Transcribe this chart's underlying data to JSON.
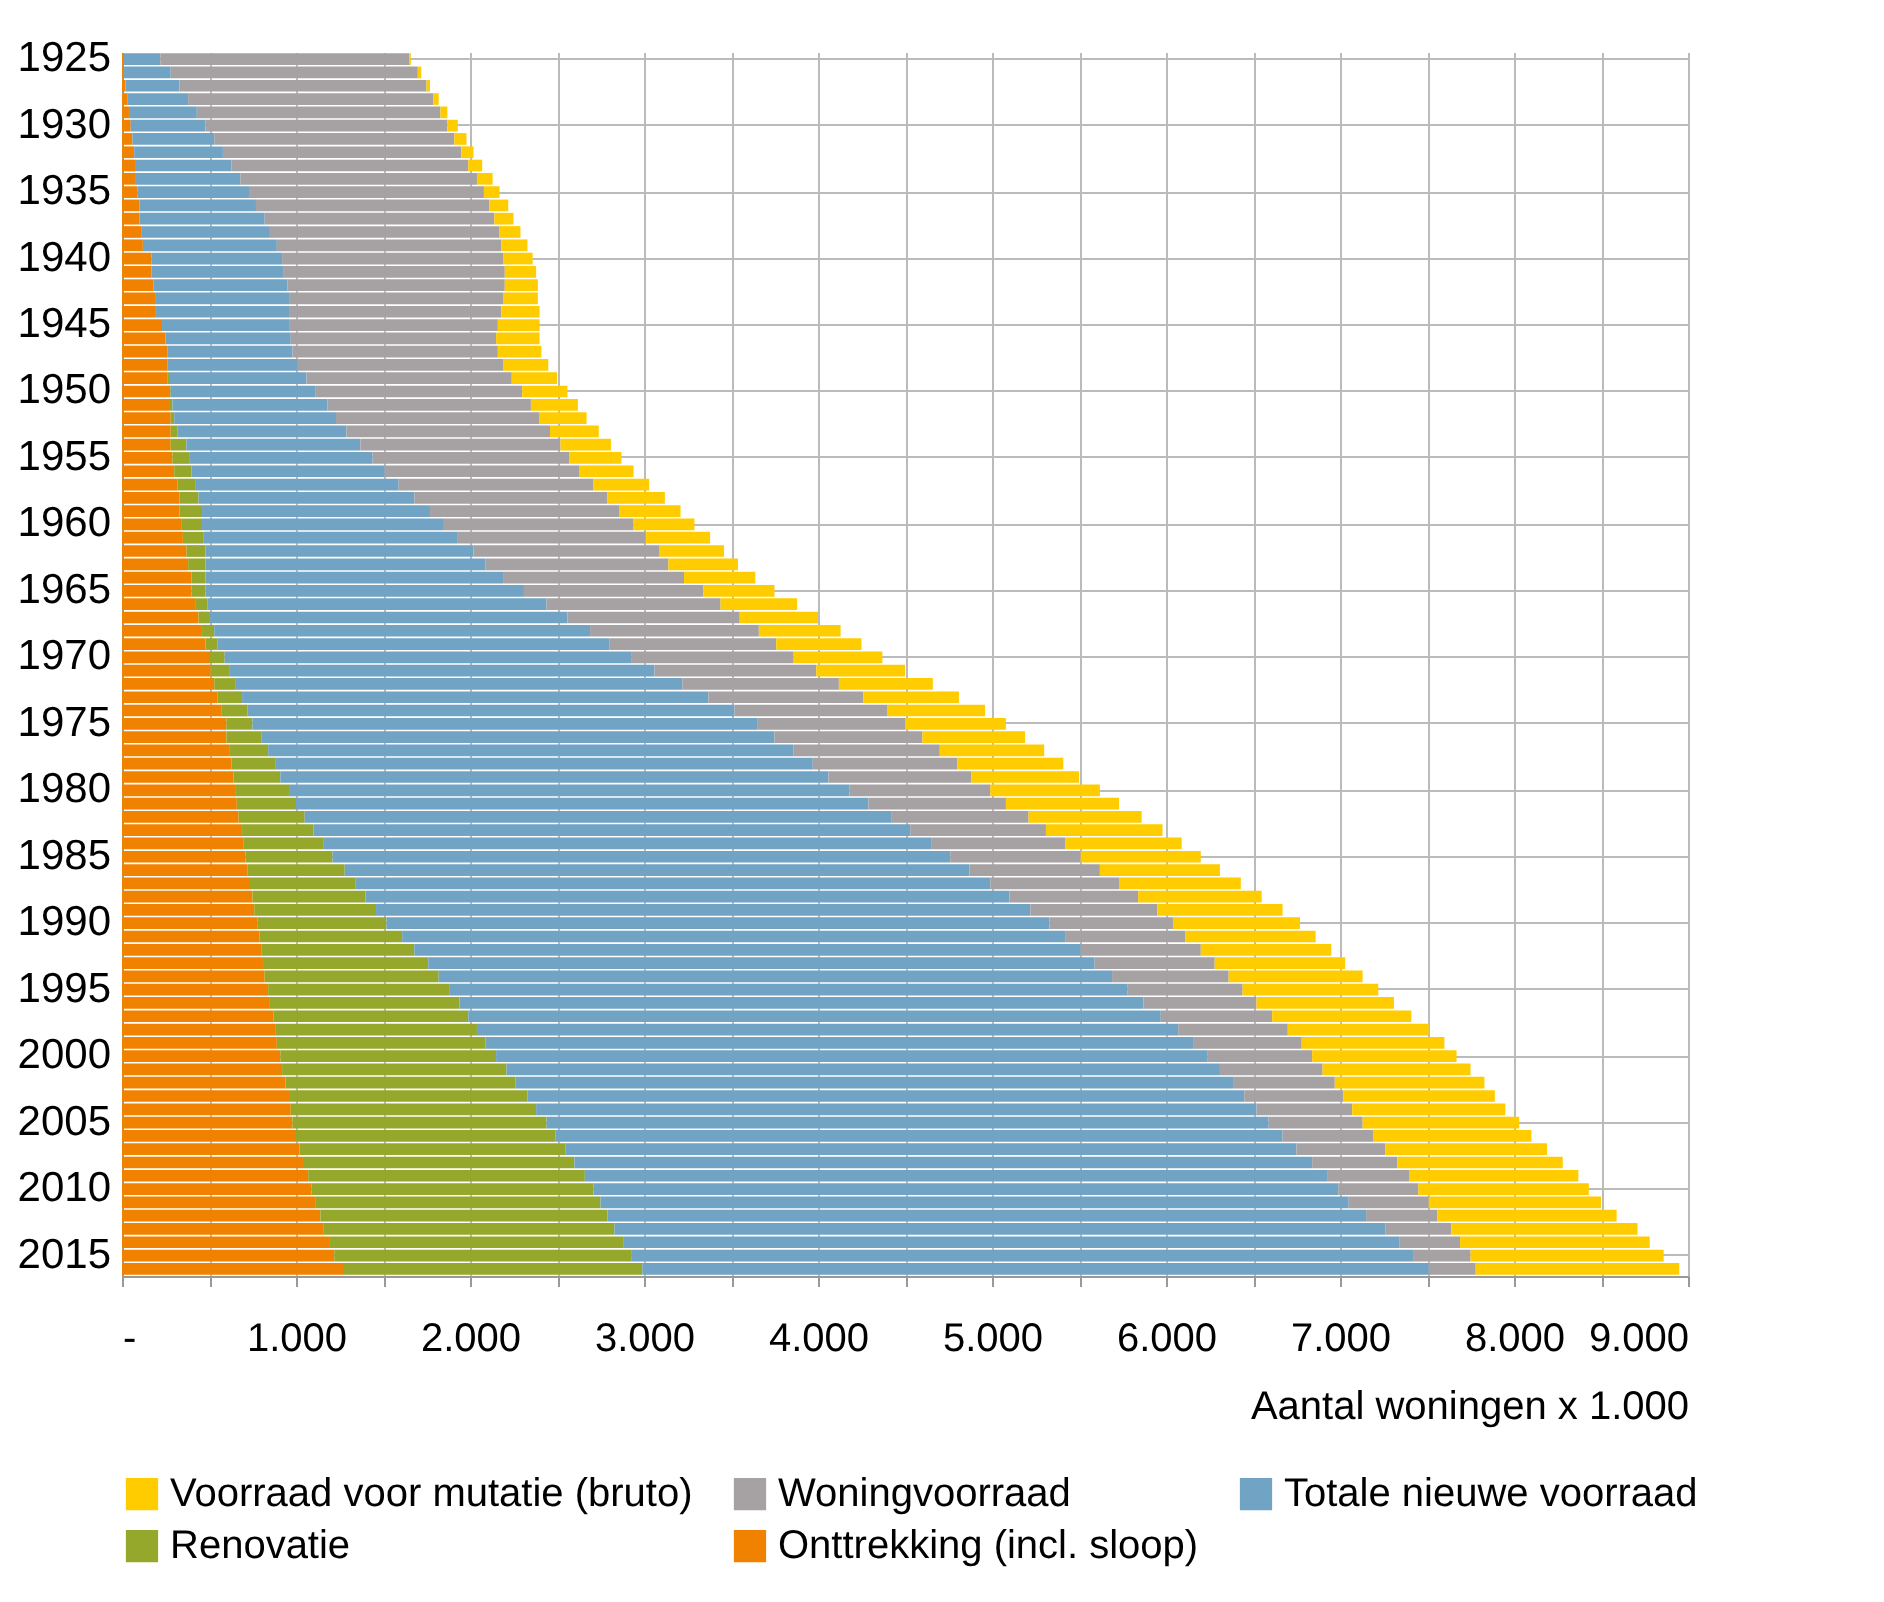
{
  "chart_data": {
    "type": "bar",
    "orientation": "horizontal",
    "stacked": true,
    "xlabel": "Aantal woningen x 1.000",
    "categories": [
      "1925",
      null,
      null,
      null,
      null,
      "1930",
      null,
      null,
      null,
      null,
      "1935",
      null,
      null,
      null,
      null,
      "1940",
      null,
      null,
      null,
      null,
      "1945",
      null,
      null,
      null,
      null,
      "1950",
      null,
      null,
      null,
      null,
      "1955",
      null,
      null,
      null,
      null,
      "1960",
      null,
      null,
      null,
      null,
      "1965",
      null,
      null,
      null,
      null,
      "1970",
      null,
      null,
      null,
      null,
      "1975",
      null,
      null,
      null,
      null,
      "1980",
      null,
      null,
      null,
      null,
      "1985",
      null,
      null,
      null,
      null,
      "1990",
      null,
      null,
      null,
      null,
      "1995",
      null,
      null,
      null,
      null,
      "2000",
      null,
      null,
      null,
      null,
      "2005",
      null,
      null,
      null,
      null,
      "2010",
      null,
      null,
      null,
      null,
      "2015",
      null
    ],
    "xlim": [
      0,
      9000
    ],
    "xticks": [
      {
        "value": 0,
        "label": "-"
      },
      {
        "value": 500,
        "label": null
      },
      {
        "value": 1000,
        "label": "1.000"
      },
      {
        "value": 1500,
        "label": null
      },
      {
        "value": 2000,
        "label": "2.000"
      },
      {
        "value": 2500,
        "label": null
      },
      {
        "value": 3000,
        "label": "3.000"
      },
      {
        "value": 3500,
        "label": null
      },
      {
        "value": 4000,
        "label": "4.000"
      },
      {
        "value": 4500,
        "label": null
      },
      {
        "value": 5000,
        "label": "5.000"
      },
      {
        "value": 5500,
        "label": null
      },
      {
        "value": 6000,
        "label": "6.000"
      },
      {
        "value": 6500,
        "label": null
      },
      {
        "value": 7000,
        "label": "7.000"
      },
      {
        "value": 7500,
        "label": null
      },
      {
        "value": 8000,
        "label": "8.000"
      },
      {
        "value": 8500,
        "label": null
      },
      {
        "value": 9000,
        "label": "9.000"
      }
    ],
    "grid": true,
    "legend": "bottom",
    "series": [
      {
        "name": "Onttrekking (incl. sloop)",
        "color": "#f08200",
        "values": [
          10,
          10,
          20,
          30,
          40,
          50,
          60,
          70,
          80,
          80,
          90,
          100,
          100,
          110,
          120,
          170,
          170,
          180,
          190,
          190,
          230,
          250,
          260,
          260,
          260,
          270,
          270,
          280,
          280,
          280,
          290,
          300,
          320,
          330,
          330,
          340,
          350,
          370,
          380,
          400,
          400,
          420,
          440,
          460,
          480,
          500,
          510,
          530,
          550,
          570,
          600,
          600,
          620,
          630,
          640,
          650,
          660,
          670,
          690,
          700,
          710,
          720,
          730,
          750,
          760,
          780,
          790,
          800,
          810,
          820,
          840,
          850,
          870,
          880,
          890,
          910,
          920,
          940,
          960,
          970,
          980,
          1000,
          1020,
          1040,
          1070,
          1090,
          1110,
          1140,
          1160,
          1190,
          1220,
          1270
        ]
      },
      {
        "name": "Renovatie",
        "color": "#95a82c",
        "values": [
          null,
          null,
          null,
          null,
          null,
          null,
          null,
          null,
          null,
          null,
          null,
          null,
          null,
          null,
          null,
          null,
          null,
          null,
          null,
          null,
          null,
          null,
          null,
          null,
          10,
          10,
          20,
          20,
          40,
          90,
          100,
          100,
          100,
          110,
          130,
          120,
          120,
          110,
          100,
          80,
          80,
          70,
          60,
          70,
          70,
          90,
          110,
          120,
          140,
          150,
          150,
          200,
          220,
          250,
          270,
          310,
          340,
          380,
          410,
          460,
          500,
          560,
          610,
          650,
          700,
          740,
          820,
          880,
          950,
          1000,
          1040,
          1090,
          1120,
          1160,
          1200,
          1240,
          1290,
          1320,
          1370,
          1410,
          1460,
          1490,
          1530,
          1560,
          1590,
          1620,
          1640,
          1650,
          1670,
          1690,
          1710,
          1720
        ]
      },
      {
        "name": "Totale nieuwe voorraad",
        "color": "#71a3c5",
        "values": [
          210,
          270,
          310,
          350,
          390,
          430,
          470,
          510,
          550,
          600,
          640,
          670,
          720,
          740,
          770,
          750,
          760,
          770,
          770,
          770,
          730,
          720,
          720,
          750,
          790,
          830,
          890,
          930,
          970,
          1000,
          1050,
          1110,
          1170,
          1240,
          1310,
          1390,
          1460,
          1540,
          1610,
          1710,
          1830,
          1950,
          2060,
          2160,
          2250,
          2340,
          2440,
          2570,
          2680,
          2800,
          2900,
          2950,
          3020,
          3090,
          3150,
          3220,
          3290,
          3370,
          3430,
          3490,
          3550,
          3590,
          3650,
          3700,
          3760,
          3810,
          3810,
          3830,
          3830,
          3870,
          3900,
          3930,
          3980,
          4030,
          4070,
          4090,
          4100,
          4130,
          4120,
          4140,
          4150,
          4180,
          4200,
          4240,
          4270,
          4280,
          4300,
          4360,
          4430,
          4460,
          4490,
          4520
        ]
      },
      {
        "name": "Woningvoorraad",
        "color": "#a6a2a4",
        "values": [
          1430,
          1420,
          1420,
          1410,
          1400,
          1390,
          1380,
          1370,
          1360,
          1360,
          1350,
          1340,
          1320,
          1320,
          1290,
          1270,
          1270,
          1250,
          1230,
          1220,
          1200,
          1180,
          1180,
          1180,
          1180,
          1190,
          1170,
          1170,
          1170,
          1150,
          1130,
          1120,
          1120,
          1110,
          1090,
          1090,
          1080,
          1070,
          1050,
          1040,
          1030,
          1000,
          990,
          970,
          960,
          930,
          930,
          900,
          890,
          880,
          850,
          850,
          840,
          830,
          820,
          810,
          790,
          790,
          780,
          770,
          750,
          750,
          740,
          740,
          730,
          710,
          690,
          690,
          690,
          670,
          660,
          650,
          640,
          630,
          620,
          600,
          590,
          580,
          570,
          550,
          540,
          520,
          510,
          490,
          470,
          460,
          460,
          410,
          380,
          350,
          330,
          270
        ]
      },
      {
        "name": "Voorraad voor mutatie (bruto)",
        "color": "#ffcc00",
        "values": [
          10,
          20,
          20,
          30,
          40,
          60,
          70,
          70,
          80,
          90,
          90,
          110,
          110,
          120,
          150,
          170,
          180,
          190,
          200,
          220,
          240,
          250,
          250,
          260,
          260,
          260,
          270,
          270,
          280,
          290,
          300,
          310,
          320,
          330,
          350,
          350,
          370,
          370,
          400,
          410,
          410,
          440,
          450,
          470,
          490,
          510,
          510,
          540,
          550,
          560,
          580,
          590,
          600,
          610,
          620,
          630,
          650,
          650,
          670,
          670,
          690,
          690,
          700,
          710,
          720,
          730,
          750,
          750,
          750,
          770,
          780,
          790,
          800,
          810,
          820,
          830,
          850,
          860,
          870,
          880,
          900,
          910,
          930,
          950,
          970,
          980,
          990,
          1030,
          1070,
          1090,
          1110,
          1170
        ]
      }
    ]
  }
}
